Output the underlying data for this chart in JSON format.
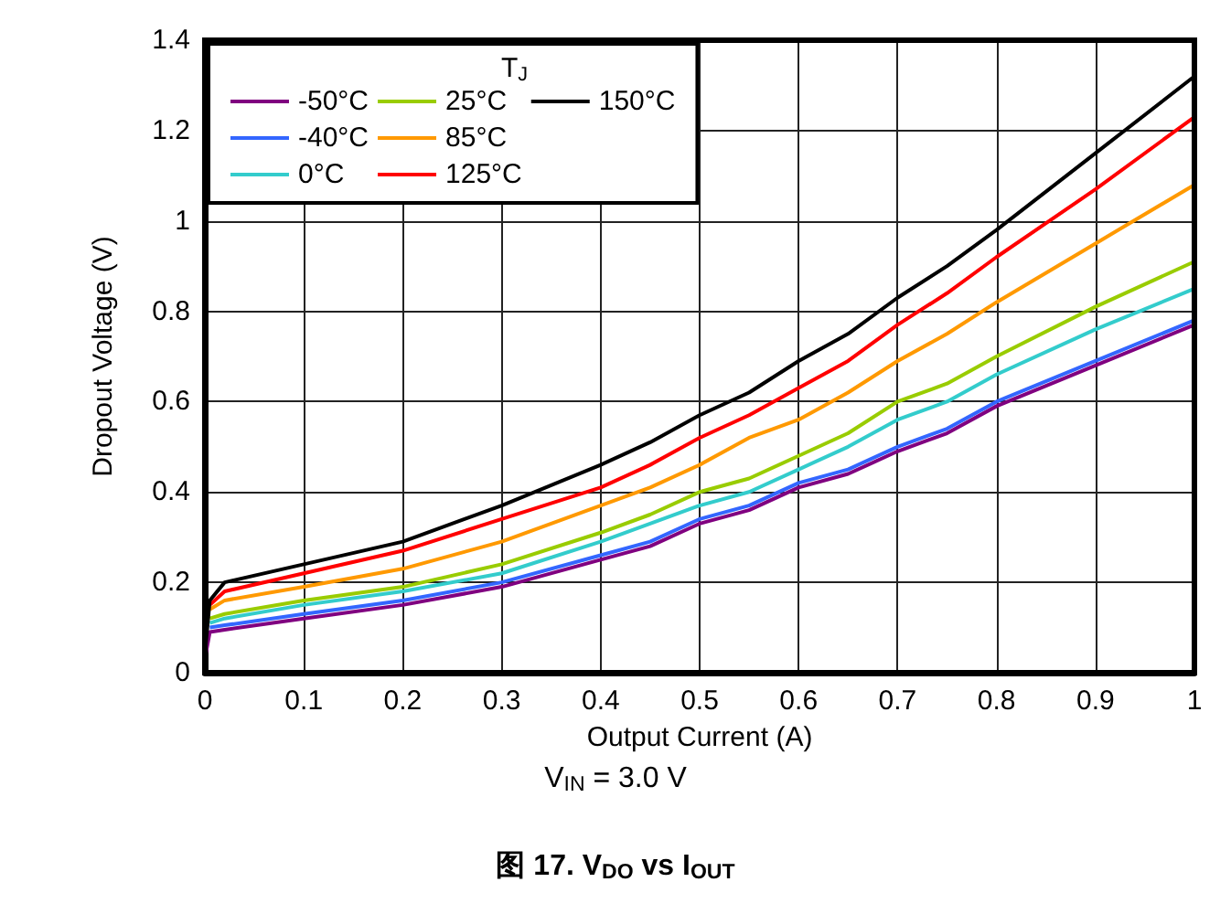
{
  "chart_data": {
    "type": "line",
    "title": "图 17. V$_{DO}$ vs I$_{OUT}$",
    "xlabel": "Output Current (A)",
    "ylabel": "Dropout Voltage (V)",
    "legend_title": "T$_{J}$",
    "annotations": [
      "V$_{IN}$ = 3.0 V"
    ],
    "x": [
      0,
      0.005,
      0.02,
      0.1,
      0.2,
      0.3,
      0.4,
      0.45,
      0.5,
      0.55,
      0.6,
      0.65,
      0.7,
      0.75,
      0.8,
      0.9,
      1.0
    ],
    "series": [
      {
        "name": "-50°C",
        "color": "#800080",
        "values": [
          0.03,
          0.09,
          0.095,
          0.12,
          0.15,
          0.19,
          0.25,
          0.28,
          0.33,
          0.36,
          0.41,
          0.44,
          0.49,
          0.53,
          0.59,
          0.68,
          0.77
        ]
      },
      {
        "name": "-40°C",
        "color": "#3366ff",
        "values": [
          null,
          0.1,
          0.105,
          0.13,
          0.16,
          0.2,
          0.26,
          0.29,
          0.34,
          0.37,
          0.42,
          0.45,
          0.5,
          0.54,
          0.6,
          0.69,
          0.78
        ]
      },
      {
        "name": "0°C",
        "color": "#33cccc",
        "values": [
          null,
          0.11,
          0.12,
          0.15,
          0.18,
          0.22,
          0.29,
          0.33,
          0.37,
          0.4,
          0.45,
          0.5,
          0.56,
          0.6,
          0.66,
          0.76,
          0.85
        ]
      },
      {
        "name": "25°C",
        "color": "#99cc00",
        "values": [
          null,
          0.12,
          0.13,
          0.16,
          0.19,
          0.24,
          0.31,
          0.35,
          0.4,
          0.43,
          0.48,
          0.53,
          0.6,
          0.64,
          0.7,
          0.81,
          0.91
        ]
      },
      {
        "name": "85°C",
        "color": "#ff9900",
        "values": [
          null,
          0.14,
          0.16,
          0.19,
          0.23,
          0.29,
          0.37,
          0.41,
          0.46,
          0.52,
          0.56,
          0.62,
          0.69,
          0.75,
          0.82,
          0.95,
          1.08
        ]
      },
      {
        "name": "125°C",
        "color": "#ff0000",
        "values": [
          null,
          0.15,
          0.18,
          0.22,
          0.27,
          0.34,
          0.41,
          0.46,
          0.52,
          0.57,
          0.63,
          0.69,
          0.77,
          0.84,
          0.92,
          1.07,
          1.23
        ]
      },
      {
        "name": "150°C",
        "color": "#000000",
        "values": [
          0.04,
          0.16,
          0.2,
          0.24,
          0.29,
          0.37,
          0.46,
          0.51,
          0.57,
          0.62,
          0.69,
          0.75,
          0.83,
          0.9,
          0.98,
          1.15,
          1.32
        ]
      }
    ],
    "xlim": [
      0,
      1
    ],
    "xticks": [
      0,
      0.1,
      0.2,
      0.3,
      0.4,
      0.5,
      0.6,
      0.7,
      0.8,
      0.9,
      1
    ],
    "ylim": [
      0,
      1.4
    ],
    "yticks": [
      0,
      0.2,
      0.4,
      0.6,
      0.8,
      1,
      1.2,
      1.4
    ],
    "grid": true,
    "legend": "top left",
    "marker": "none",
    "line_style": "solid"
  }
}
